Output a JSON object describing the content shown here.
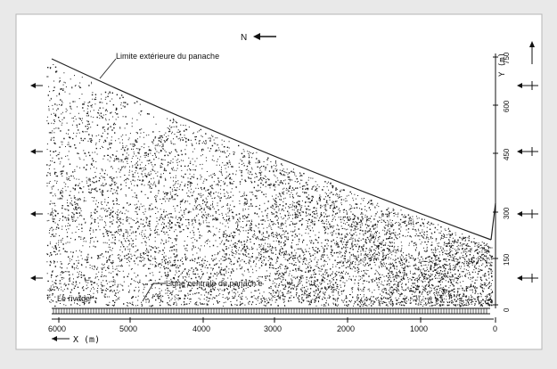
{
  "figure": {
    "north_label": "N",
    "plume_boundary_label": "Limite extérieure du panache",
    "centerline_label": "Ligne centrale du panach e",
    "shore_label": "Le rivage",
    "x_axis_label": "X (m)",
    "y_axis_label": "Y (m)",
    "x_ticks": [
      "6000",
      "5000",
      "4000",
      "3000",
      "2000",
      "1000",
      "0"
    ],
    "y_ticks": [
      "0",
      "150",
      "300",
      "450",
      "600",
      "750"
    ],
    "colors": {
      "background": "#e9e9e9",
      "paper": "#ffffff",
      "ink": "#111111"
    }
  }
}
